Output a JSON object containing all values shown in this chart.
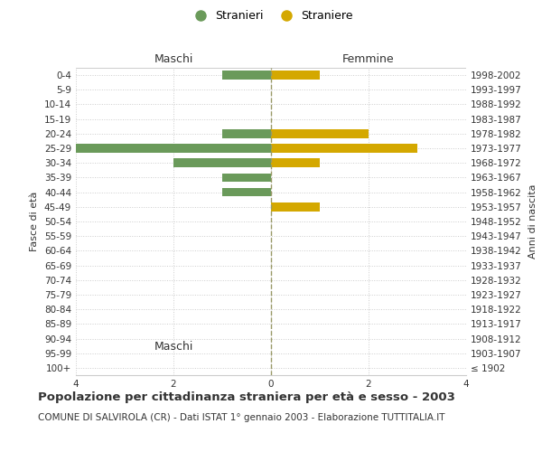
{
  "age_groups": [
    "100+",
    "95-99",
    "90-94",
    "85-89",
    "80-84",
    "75-79",
    "70-74",
    "65-69",
    "60-64",
    "55-59",
    "50-54",
    "45-49",
    "40-44",
    "35-39",
    "30-34",
    "25-29",
    "20-24",
    "15-19",
    "10-14",
    "5-9",
    "0-4"
  ],
  "birth_years": [
    "≤ 1902",
    "1903-1907",
    "1908-1912",
    "1913-1917",
    "1918-1922",
    "1923-1927",
    "1928-1932",
    "1933-1937",
    "1938-1942",
    "1943-1947",
    "1948-1952",
    "1953-1957",
    "1958-1962",
    "1963-1967",
    "1968-1972",
    "1973-1977",
    "1978-1982",
    "1983-1987",
    "1988-1992",
    "1993-1997",
    "1998-2002"
  ],
  "maschi": [
    0,
    0,
    0,
    0,
    0,
    0,
    0,
    0,
    0,
    0,
    0,
    0,
    1,
    1,
    2,
    4,
    1,
    0,
    0,
    0,
    1
  ],
  "femmine": [
    0,
    0,
    0,
    0,
    0,
    0,
    0,
    0,
    0,
    0,
    0,
    1,
    0,
    0,
    1,
    3,
    2,
    0,
    0,
    0,
    1
  ],
  "color_maschi": "#6a9a5a",
  "color_femmine": "#d4a800",
  "xlim": 4,
  "title": "Popolazione per cittadinanza straniera per età e sesso - 2003",
  "subtitle": "COMUNE DI SALVIROLA (CR) - Dati ISTAT 1° gennaio 2003 - Elaborazione TUTTITALIA.IT",
  "xlabel_left": "Maschi",
  "xlabel_right": "Femmine",
  "ylabel_left": "Fasce di età",
  "ylabel_right": "Anni di nascita",
  "legend_maschi": "Stranieri",
  "legend_femmine": "Straniere",
  "bg_color": "#ffffff",
  "grid_color": "#cccccc",
  "centerline_color": "#999966",
  "text_color": "#333333",
  "tick_fontsize": 7.5,
  "label_fontsize": 8,
  "header_fontsize": 9,
  "title_fontsize": 9.5,
  "subtitle_fontsize": 7.5,
  "legend_fontsize": 9
}
